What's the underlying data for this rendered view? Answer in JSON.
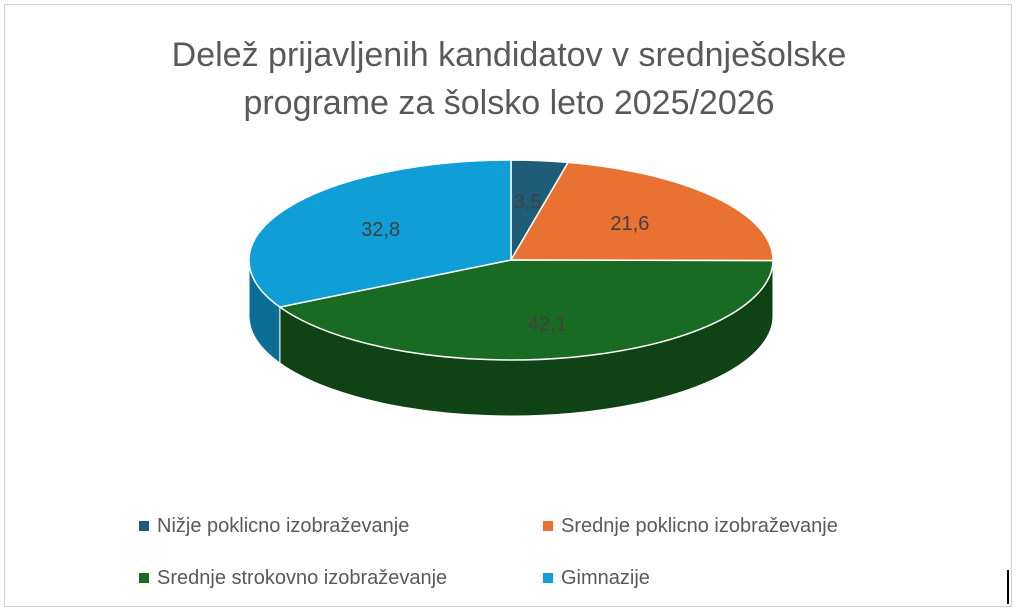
{
  "chart_data": {
    "type": "pie",
    "title": "Delež prijavljenih kandidatov v srednješolske programe za šolsko leto 2025/2026",
    "title_lines": [
      "Delež prijavljenih kandidatov v srednješolske",
      "programe za šolsko leto 2025/2026"
    ],
    "categories": [
      "Nižje poklicno izobraževanje",
      "Srednje poklicno izobraževanje",
      "Srednje strokovno izobraževanje",
      "Gimnazije"
    ],
    "values": [
      3.5,
      21.6,
      42.1,
      32.8
    ],
    "labels": [
      "3,5",
      "21,6",
      "42,1",
      "32,8"
    ],
    "colors": [
      "#1f5c78",
      "#e97132",
      "#196b24",
      "#0f9ed5"
    ],
    "side_colors": [
      "#123a4d",
      "#a64f22",
      "#0f4214",
      "#0a6e95"
    ],
    "legend_position": "bottom",
    "style": "3d"
  }
}
